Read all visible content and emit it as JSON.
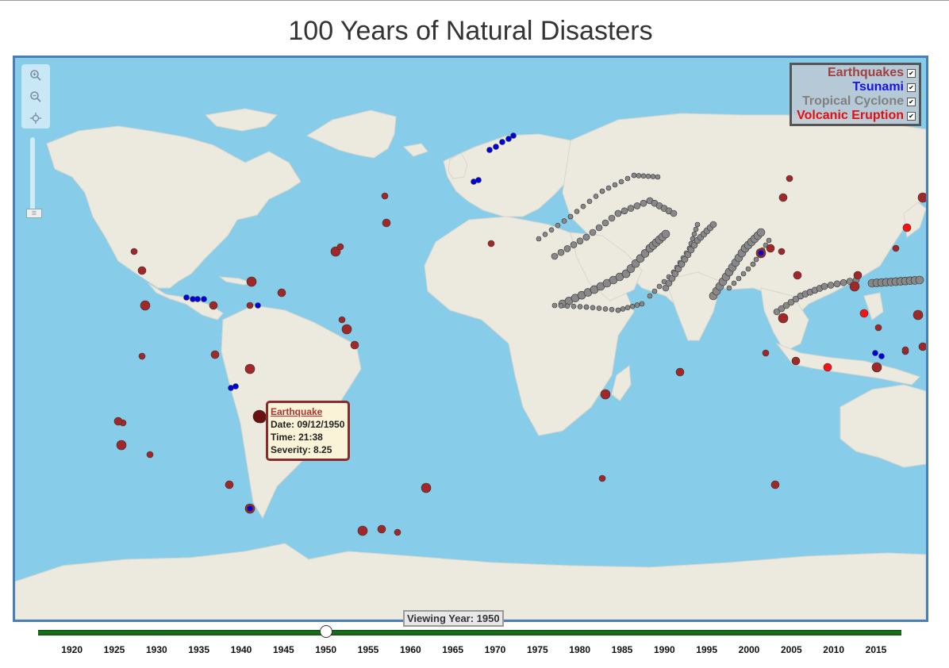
{
  "title": "100 Years of Natural Disasters",
  "colors": {
    "ocean": "#87cdea",
    "land": "#eceadf",
    "earthquake": "#a02828",
    "tsunami": "#0000dd",
    "cyclone": "#888888",
    "volcano": "#ff1010",
    "slider_track": "#1a6a1a"
  },
  "legend": {
    "items": [
      {
        "label": "Earthquakes",
        "color": "#a04040",
        "checked": true
      },
      {
        "label": "Tsunami",
        "color": "#1414e0",
        "checked": true
      },
      {
        "label": "Tropical Cyclone",
        "color": "#808080",
        "checked": true
      },
      {
        "label": "Volcanic Eruption",
        "color": "#e01010",
        "checked": true
      }
    ]
  },
  "tooltip": {
    "type": "Earthquake",
    "date": "Date: 09/12/1950",
    "time": "Time: 21:38",
    "severity": "Severity: 8.25"
  },
  "zoom_controls": [
    "zoom-in",
    "zoom-out",
    "zoom-to-extent"
  ],
  "timeline": {
    "label": "Viewing Year: 1950",
    "current_year": 1950,
    "min_year": 1916,
    "max_year": 2018,
    "ticks": [
      "1920",
      "1925",
      "1930",
      "1935",
      "1940",
      "1945",
      "1950",
      "1955",
      "1960",
      "1965",
      "1970",
      "1975",
      "1980",
      "1985",
      "1990",
      "1995",
      "2000",
      "2005",
      "2010",
      "2015"
    ]
  }
}
